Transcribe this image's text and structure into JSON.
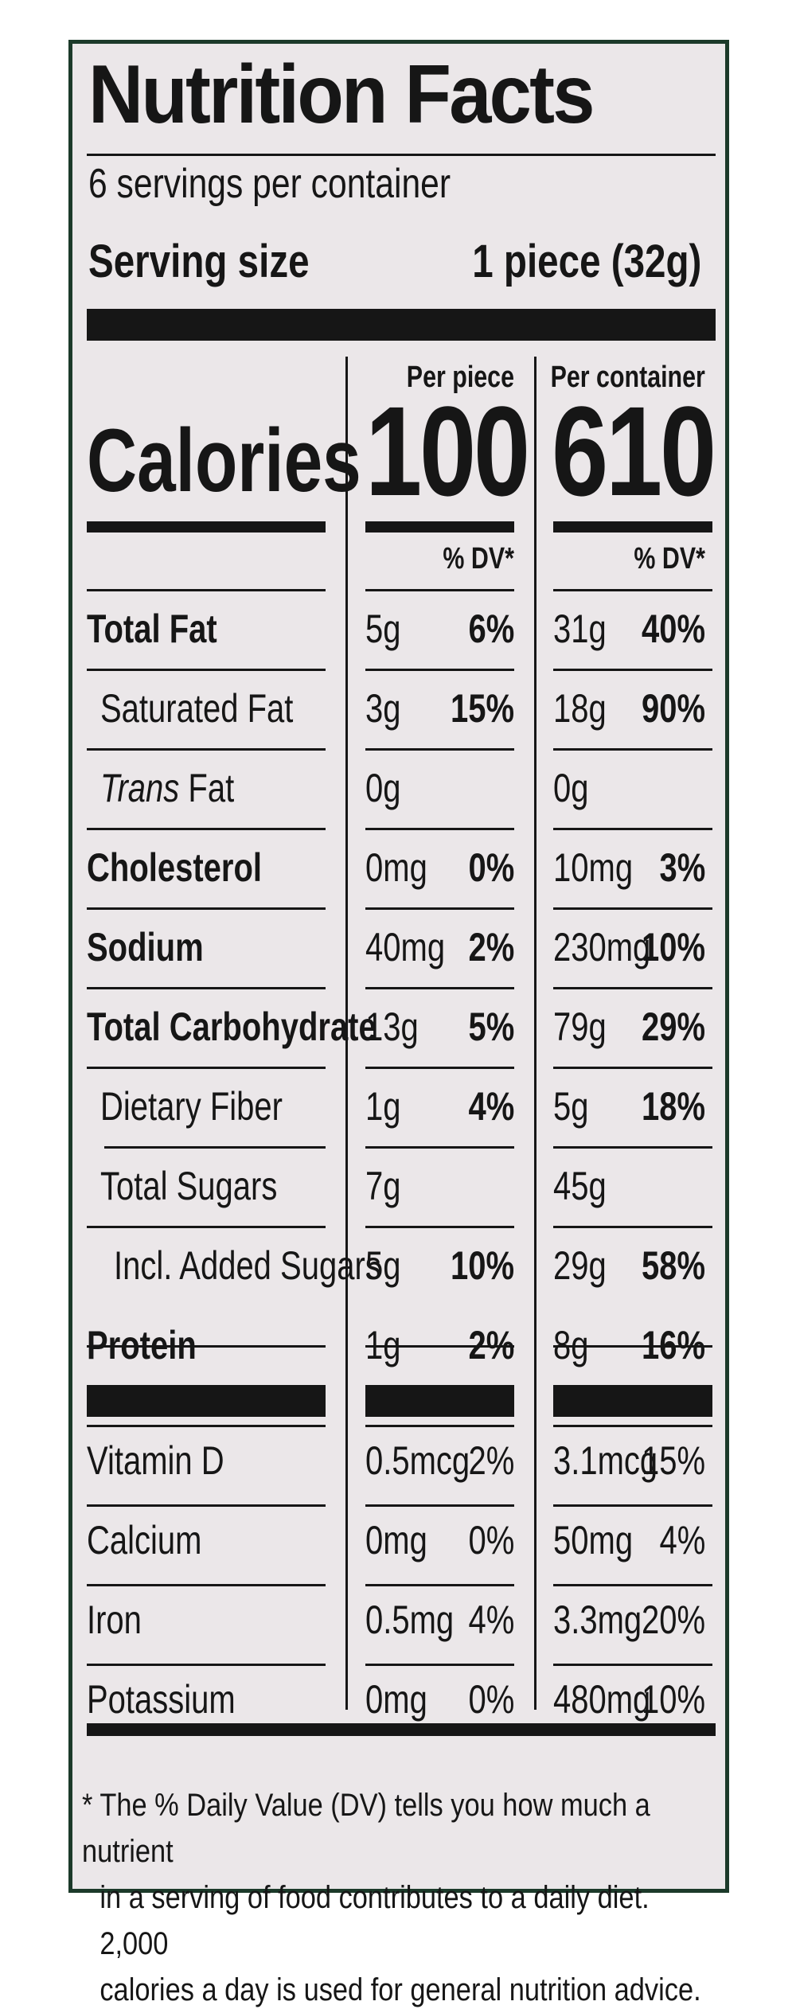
{
  "label": {
    "title": "Nutrition Facts",
    "servings": "6 servings per container",
    "serving_size_label": "Serving size",
    "serving_size_value": "1 piece (32g)",
    "calories_label": "Calories",
    "columns": [
      {
        "header": "Per piece",
        "calories": "100",
        "dv_header": "% DV*"
      },
      {
        "header": "Per container",
        "calories": "610",
        "dv_header": "% DV*"
      }
    ],
    "nutrients": [
      {
        "name": "Total Fat",
        "piece_amount": "5g",
        "piece_dv": "6%",
        "container_amount": "31g",
        "container_dv": "40%"
      },
      {
        "name": "Saturated Fat",
        "piece_amount": "3g",
        "piece_dv": "15%",
        "container_amount": "18g",
        "container_dv": "90%"
      },
      {
        "name_italic": "Trans",
        "name": " Fat",
        "piece_amount": "0g",
        "piece_dv": "",
        "container_amount": "0g",
        "container_dv": ""
      },
      {
        "name": "Cholesterol",
        "piece_amount": "0mg",
        "piece_dv": "0%",
        "container_amount": "10mg",
        "container_dv": "3%"
      },
      {
        "name": "Sodium",
        "piece_amount": "40mg",
        "piece_dv": "2%",
        "container_amount": "230mg",
        "container_dv": "10%"
      },
      {
        "name": "Total Carbohydrate",
        "piece_amount": "13g",
        "piece_dv": "5%",
        "container_amount": "79g",
        "container_dv": "29%"
      },
      {
        "name": "Dietary Fiber",
        "piece_amount": "1g",
        "piece_dv": "4%",
        "container_amount": "5g",
        "container_dv": "18%"
      },
      {
        "name": "Total Sugars",
        "piece_amount": "7g",
        "piece_dv": "",
        "container_amount": "45g",
        "container_dv": ""
      },
      {
        "name": "Incl. Added Sugars",
        "piece_amount": "5g",
        "piece_dv": "10%",
        "container_amount": "29g",
        "container_dv": "58%"
      },
      {
        "name": "Protein",
        "piece_amount": "1g",
        "piece_dv": "2%",
        "container_amount": "8g",
        "container_dv": "16%"
      }
    ],
    "vitamins": [
      {
        "name": "Vitamin D",
        "piece_amount": "0.5mcg",
        "piece_dv": "2%",
        "container_amount": "3.1mcg",
        "container_dv": "15%"
      },
      {
        "name": "Calcium",
        "piece_amount": "0mg",
        "piece_dv": "0%",
        "container_amount": "50mg",
        "container_dv": "4%"
      },
      {
        "name": "Iron",
        "piece_amount": "0.5mg",
        "piece_dv": "4%",
        "container_amount": "3.3mg",
        "container_dv": "20%"
      },
      {
        "name": "Potassium",
        "piece_amount": "0mg",
        "piece_dv": "0%",
        "container_amount": "480mg",
        "container_dv": "10%"
      }
    ],
    "footnote": [
      "* The % Daily Value (DV) tells you how much a nutrient",
      "in a serving of food contributes to a daily diet. 2,000",
      "calories a day is used for general nutrition advice."
    ],
    "colors": {
      "panel": "#ebe7e9",
      "border": "#1c3a2a",
      "ink": "#161616"
    }
  }
}
